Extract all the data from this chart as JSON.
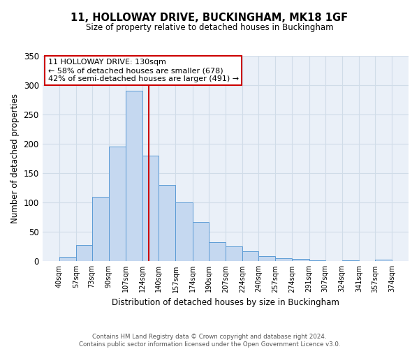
{
  "title": "11, HOLLOWAY DRIVE, BUCKINGHAM, MK18 1GF",
  "subtitle": "Size of property relative to detached houses in Buckingham",
  "xlabel": "Distribution of detached houses by size in Buckingham",
  "ylabel": "Number of detached properties",
  "bin_labels": [
    "40sqm",
    "57sqm",
    "73sqm",
    "90sqm",
    "107sqm",
    "124sqm",
    "140sqm",
    "157sqm",
    "174sqm",
    "190sqm",
    "207sqm",
    "224sqm",
    "240sqm",
    "257sqm",
    "274sqm",
    "291sqm",
    "307sqm",
    "324sqm",
    "341sqm",
    "357sqm",
    "374sqm"
  ],
  "bar_heights": [
    7,
    28,
    110,
    195,
    290,
    180,
    130,
    100,
    67,
    33,
    25,
    17,
    9,
    5,
    4,
    1,
    0,
    1,
    0,
    3
  ],
  "bin_edges": [
    40,
    57,
    73,
    90,
    107,
    124,
    140,
    157,
    174,
    190,
    207,
    224,
    240,
    257,
    274,
    291,
    307,
    324,
    341,
    357,
    374
  ],
  "bar_color": "#c5d8f0",
  "bar_edge_color": "#5b9bd5",
  "vline_x": 130,
  "vline_color": "#cc0000",
  "ylim": [
    0,
    350
  ],
  "yticks": [
    0,
    50,
    100,
    150,
    200,
    250,
    300,
    350
  ],
  "annotation_title": "11 HOLLOWAY DRIVE: 130sqm",
  "annotation_line1": "← 58% of detached houses are smaller (678)",
  "annotation_line2": "42% of semi-detached houses are larger (491) →",
  "annotation_box_color": "#ffffff",
  "annotation_box_edge": "#cc0000",
  "footnote1": "Contains HM Land Registry data © Crown copyright and database right 2024.",
  "footnote2": "Contains public sector information licensed under the Open Government Licence v3.0.",
  "grid_color": "#d0dce8",
  "background_color": "#eaf0f8"
}
